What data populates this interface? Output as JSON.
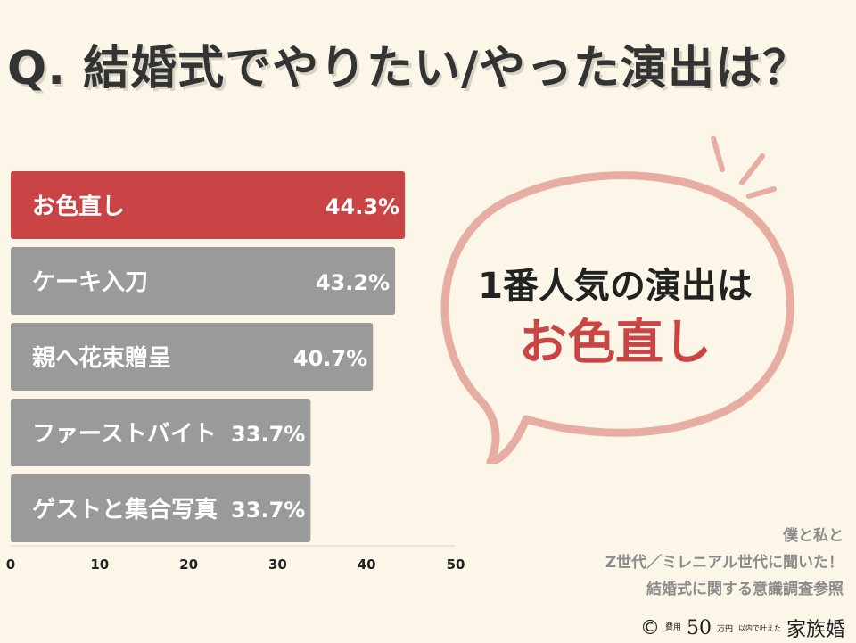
{
  "title": "Q. 結婚式でやりたい/やった演出は？",
  "chart_data": {
    "type": "bar",
    "orientation": "horizontal",
    "categories": [
      "お色直し",
      "ケーキ入刀",
      "親へ花束贈呈",
      "ファーストバイト",
      "ゲストと集合写真"
    ],
    "values": [
      44.3,
      43.2,
      40.7,
      33.7,
      33.7
    ],
    "value_labels": [
      "44.3%",
      "43.2%",
      "40.7%",
      "33.7%",
      "33.7%"
    ],
    "xlim": [
      0,
      50
    ],
    "xticks": [
      "0",
      "10",
      "20",
      "30",
      "40",
      "50"
    ],
    "grid": false,
    "highlight_index": 0,
    "colors": {
      "highlight": "#c94444",
      "bar": "#9a9a9a",
      "label": "#ffffff"
    }
  },
  "callout": {
    "line1": "1番人気の演出は",
    "line2": "お色直し",
    "bubble_color": "#e8ada2"
  },
  "source": {
    "line1": "僕と私と",
    "line2": "Z世代／ミレニアル世代に聞いた！",
    "line3": "結婚式に関する意識調査参照"
  },
  "brand": {
    "copyright": "©",
    "label_small": "費用",
    "amount": "50",
    "unit": "万円",
    "note": "以内で叶えた",
    "name": "家族婚"
  }
}
